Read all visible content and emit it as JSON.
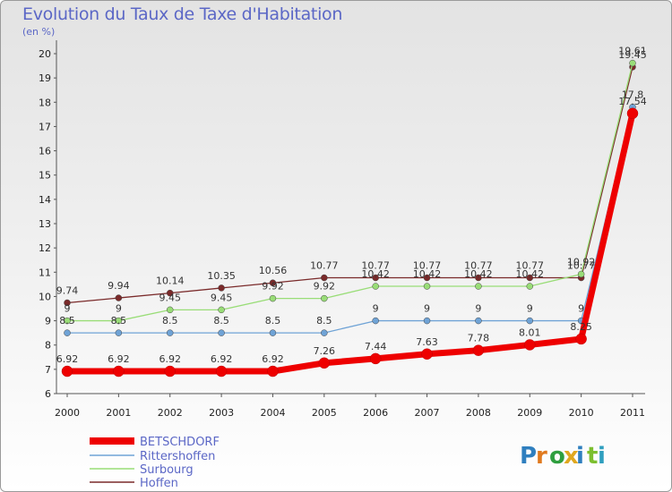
{
  "header": {
    "title": "Evolution du Taux de Taxe d'Habitation",
    "subtitle": "(en %)"
  },
  "logo": {
    "text": "Proxiti",
    "colors": [
      "#2f7fbf",
      "#e07a1f",
      "#2f9f3f",
      "#e0a81f",
      "#2f7fbf",
      "#7cbf2f",
      "#2f9fbf"
    ]
  },
  "chart_data": {
    "type": "line",
    "title": "Evolution du Taux de Taxe d'Habitation",
    "subtitle": "(en %)",
    "x": [
      "2000",
      "2001",
      "2002",
      "2003",
      "2004",
      "2005",
      "2006",
      "2007",
      "2008",
      "2009",
      "2010",
      "2011"
    ],
    "ylim": [
      6,
      20
    ],
    "yticks": [
      6,
      7,
      8,
      9,
      10,
      11,
      12,
      13,
      14,
      15,
      16,
      17,
      18,
      19,
      20
    ],
    "grid": false,
    "legend": "bottom-left",
    "series": [
      {
        "name": "BETSCHDORF",
        "color": "#ee0000",
        "values": [
          6.92,
          6.92,
          6.92,
          6.92,
          6.92,
          7.26,
          7.44,
          7.63,
          7.78,
          8.01,
          8.25,
          17.54
        ],
        "labels": [
          "6.92",
          "6.92",
          "6.92",
          "6.92",
          "6.92",
          "7.26",
          "7.44",
          "7.63",
          "7.78",
          "8.01",
          "8.25",
          "17.54"
        ]
      },
      {
        "name": "Rittershoffen",
        "color": "#6fa3d6",
        "values": [
          8.5,
          8.5,
          8.5,
          8.5,
          8.5,
          8.5,
          9,
          9,
          9,
          9,
          9,
          17.8
        ],
        "labels": [
          "8.5",
          "8.5",
          "8.5",
          "8.5",
          "8.5",
          "8.5",
          "9",
          "9",
          "9",
          "9",
          "9",
          "17.8"
        ]
      },
      {
        "name": "Surbourg",
        "color": "#99dd77",
        "values": [
          9,
          9,
          9.45,
          9.45,
          9.92,
          9.92,
          10.42,
          10.42,
          10.42,
          10.42,
          10.92,
          19.61
        ],
        "labels": [
          "9",
          "9",
          "9.45",
          "9.45",
          "9.92",
          "9.92",
          "10.42",
          "10.42",
          "10.42",
          "10.42",
          "10.92",
          "19.61"
        ]
      },
      {
        "name": "Hoffen",
        "color": "#7a2a2a",
        "values": [
          9.74,
          9.94,
          10.14,
          10.35,
          10.56,
          10.77,
          10.77,
          10.77,
          10.77,
          10.77,
          10.77,
          19.45
        ],
        "labels": [
          "9.74",
          "9.94",
          "10.14",
          "10.35",
          "10.56",
          "10.77",
          "10.77",
          "10.77",
          "10.77",
          "10.77",
          "10.77",
          "19.45"
        ]
      }
    ]
  }
}
